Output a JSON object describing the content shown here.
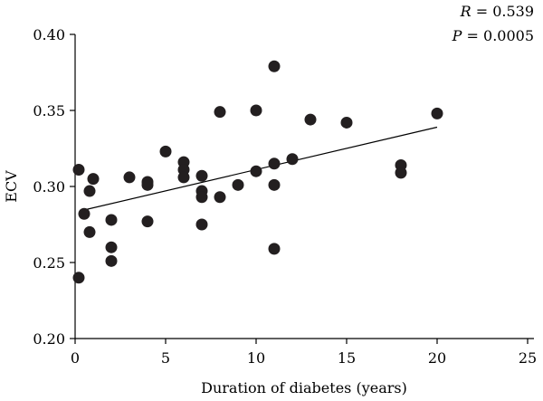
{
  "chart_data": {
    "type": "scatter",
    "xlabel": "Duration of diabetes (years)",
    "ylabel": "ECV",
    "xlim": [
      0,
      25
    ],
    "ylim": [
      0.2,
      0.4
    ],
    "xticks": [
      0,
      5,
      10,
      15,
      20,
      25
    ],
    "xtick_labels": [
      "0",
      "5",
      "10",
      "15",
      "20",
      "25"
    ],
    "yticks": [
      0.2,
      0.25,
      0.3,
      0.35,
      0.4
    ],
    "ytick_labels": [
      "0.20",
      "0.25",
      "0.30",
      "0.35",
      "0.40"
    ],
    "grid": false,
    "annotations": {
      "r_var": "R",
      "r_text": " = 0.539",
      "p_var": "P",
      "p_text": " = 0.0005"
    },
    "trendline": {
      "x": [
        0.3,
        20
      ],
      "y": [
        0.284,
        0.339
      ]
    },
    "points": [
      {
        "x": 0.2,
        "y": 0.24
      },
      {
        "x": 0.2,
        "y": 0.311
      },
      {
        "x": 0.5,
        "y": 0.282
      },
      {
        "x": 0.8,
        "y": 0.27
      },
      {
        "x": 0.8,
        "y": 0.297
      },
      {
        "x": 1.0,
        "y": 0.305
      },
      {
        "x": 2.0,
        "y": 0.278
      },
      {
        "x": 2.0,
        "y": 0.26
      },
      {
        "x": 2.0,
        "y": 0.251
      },
      {
        "x": 3.0,
        "y": 0.306
      },
      {
        "x": 4.0,
        "y": 0.303
      },
      {
        "x": 4.0,
        "y": 0.301
      },
      {
        "x": 4.0,
        "y": 0.277
      },
      {
        "x": 5.0,
        "y": 0.323
      },
      {
        "x": 6.0,
        "y": 0.316
      },
      {
        "x": 6.0,
        "y": 0.311
      },
      {
        "x": 6.0,
        "y": 0.306
      },
      {
        "x": 7.0,
        "y": 0.307
      },
      {
        "x": 7.0,
        "y": 0.297
      },
      {
        "x": 7.0,
        "y": 0.293
      },
      {
        "x": 7.0,
        "y": 0.275
      },
      {
        "x": 8.0,
        "y": 0.349
      },
      {
        "x": 8.0,
        "y": 0.293
      },
      {
        "x": 9.0,
        "y": 0.301
      },
      {
        "x": 10.0,
        "y": 0.35
      },
      {
        "x": 10.0,
        "y": 0.31
      },
      {
        "x": 11.0,
        "y": 0.379
      },
      {
        "x": 11.0,
        "y": 0.315
      },
      {
        "x": 11.0,
        "y": 0.301
      },
      {
        "x": 11.0,
        "y": 0.259
      },
      {
        "x": 12.0,
        "y": 0.318
      },
      {
        "x": 13.0,
        "y": 0.344
      },
      {
        "x": 15.0,
        "y": 0.342
      },
      {
        "x": 18.0,
        "y": 0.314
      },
      {
        "x": 18.0,
        "y": 0.309
      },
      {
        "x": 20.0,
        "y": 0.348
      }
    ]
  }
}
